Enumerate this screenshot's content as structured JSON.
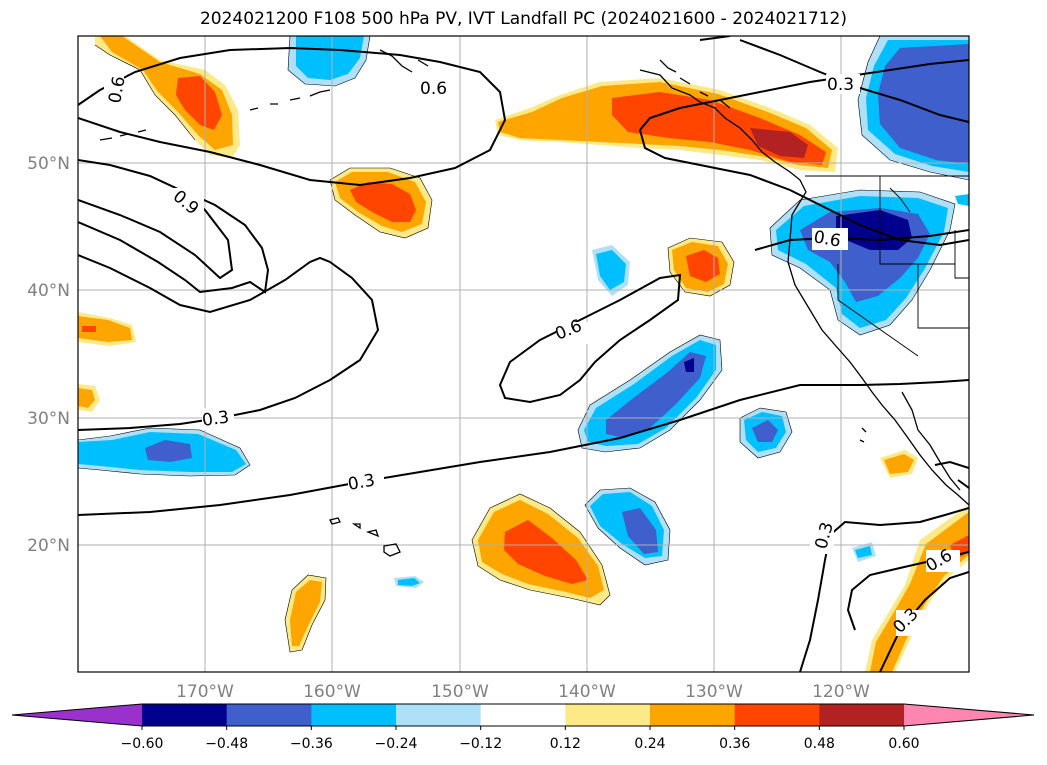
{
  "title": "2024021200 F108 500 hPa PV, IVT Landfall PC (2024021600 - 2024021712)",
  "map": {
    "lon_ticks": [
      "170°W",
      "160°W",
      "150°W",
      "140°W",
      "130°W",
      "120°W"
    ],
    "lat_ticks": [
      "50°N",
      "40°N",
      "30°N",
      "20°N"
    ],
    "contour_labels": [
      "0.6",
      "0.6",
      "0.9",
      "0.3",
      "0.6",
      "0.6",
      "0.3",
      "0.3",
      "0.3",
      "0.6",
      "0.3"
    ]
  },
  "colorbar": {
    "colors": [
      "#9a31cc",
      "#00008c",
      "#3e5fcc",
      "#00bfff",
      "#aee1f9",
      "#ffffff",
      "#fde985",
      "#ffa500",
      "#ff4500",
      "#b22222",
      "#ff86b0"
    ],
    "ticks": [
      "−0.60",
      "−0.48",
      "−0.36",
      "−0.24",
      "−0.12",
      "0.12",
      "0.24",
      "0.36",
      "0.48",
      "0.60"
    ]
  }
}
